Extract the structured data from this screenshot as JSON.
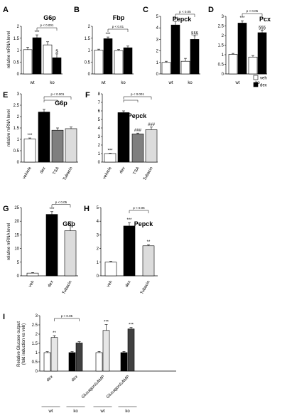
{
  "legend": {
    "items": [
      {
        "label": "veh",
        "color": "#ffffff"
      },
      {
        "label": "dex",
        "color": "#000000"
      }
    ]
  },
  "chart_data": [
    {
      "id": "A",
      "type": "bar",
      "title": "G6p",
      "ylabel": "relative mRNA level",
      "ylim": [
        0,
        2
      ],
      "yticks": [
        0,
        0.5,
        1,
        1.5,
        2
      ],
      "yticklabels": [
        "0",
        "0.5",
        "1",
        "1.5",
        "2"
      ],
      "groups": [
        "wt",
        "ko"
      ],
      "bars": [
        {
          "value": 1.02,
          "err": 0.1,
          "color": "#ffffff"
        },
        {
          "value": 1.52,
          "err": 0.12,
          "color": "#000000",
          "sig": "***"
        },
        {
          "value": 1.22,
          "err": 0.13,
          "color": "#ffffff"
        },
        {
          "value": 0.68,
          "err": 0.16,
          "color": "#000000",
          "sig": "$"
        }
      ],
      "bracket": {
        "from": 1,
        "to": 3,
        "label": "p < 0.001"
      }
    },
    {
      "id": "B",
      "type": "bar",
      "title": "Fbp",
      "ylabel": "",
      "ylim": [
        0,
        2
      ],
      "yticks": [
        0,
        0.5,
        1,
        1.5,
        2
      ],
      "yticklabels": [
        "0",
        "0.5",
        "1",
        "1.5",
        "2"
      ],
      "groups": [
        "wt",
        "ko"
      ],
      "bars": [
        {
          "value": 1.0,
          "err": 0.04,
          "color": "#ffffff"
        },
        {
          "value": 1.48,
          "err": 0.07,
          "color": "#000000",
          "sig": "***"
        },
        {
          "value": 0.98,
          "err": 0.05,
          "color": "#ffffff"
        },
        {
          "value": 1.1,
          "err": 0.07,
          "color": "#000000"
        }
      ],
      "bracket": {
        "from": 1,
        "to": 3,
        "label": "p < 0.01"
      }
    },
    {
      "id": "C",
      "type": "bar",
      "title": "Pepck",
      "ylabel": "",
      "ylim": [
        0,
        5
      ],
      "yticks": [
        0,
        1,
        2,
        3,
        4,
        5
      ],
      "yticklabels": [
        "0",
        "1",
        "2",
        "3",
        "4",
        "5"
      ],
      "groups": [
        "wt",
        "ko"
      ],
      "bars": [
        {
          "value": 1.0,
          "err": 0.1,
          "color": "#ffffff"
        },
        {
          "value": 4.25,
          "err": 0.32,
          "color": "#000000",
          "sig": "***"
        },
        {
          "value": 1.1,
          "err": 0.25,
          "color": "#ffffff"
        },
        {
          "value": 3.0,
          "err": 0.3,
          "color": "#000000",
          "sig": "§§§"
        }
      ],
      "bracket": {
        "from": 1,
        "to": 3,
        "label": "p < 0.05"
      }
    },
    {
      "id": "D",
      "type": "bar",
      "title": "Pcx",
      "ylabel": "",
      "ylim": [
        0,
        3
      ],
      "yticks": [
        0,
        0.5,
        1,
        1.5,
        2,
        2.5,
        3
      ],
      "yticklabels": [
        "0",
        "0.5",
        "1",
        "1.5",
        "2",
        "2.5",
        "3"
      ],
      "groups": [
        "wt",
        "ko"
      ],
      "bars": [
        {
          "value": 1.02,
          "err": 0.05,
          "color": "#ffffff"
        },
        {
          "value": 2.65,
          "err": 0.12,
          "color": "#000000",
          "sig": "***"
        },
        {
          "value": 0.88,
          "err": 0.08,
          "color": "#ffffff"
        },
        {
          "value": 2.15,
          "err": 0.13,
          "color": "#000000",
          "sig": "§§§"
        }
      ],
      "bracket": {
        "from": 1,
        "to": 3,
        "label": "p < 0.05"
      }
    },
    {
      "id": "E",
      "type": "bar",
      "title": "G6p",
      "ylabel": "relative mRNA level",
      "ylim": [
        0,
        3
      ],
      "yticks": [
        0,
        0.5,
        1,
        1.5,
        2,
        2.5,
        3
      ],
      "yticklabels": [
        "0",
        "0.5",
        "1",
        "1.5",
        "2",
        "2.5",
        "3"
      ],
      "categories": [
        "vehicle",
        "dex",
        "TSA",
        "Tubacin"
      ],
      "bars": [
        {
          "value": 1.02,
          "err": 0.04,
          "color": "#ffffff",
          "sig": "***"
        },
        {
          "value": 2.2,
          "err": 0.12,
          "color": "#000000"
        },
        {
          "value": 1.4,
          "err": 0.1,
          "color": "#7f7f7f"
        },
        {
          "value": 1.47,
          "err": 0.07,
          "color": "#dcdcdc"
        }
      ],
      "bracket": {
        "from": 1,
        "to": 3,
        "inner": 2,
        "label": "p < 0.001"
      }
    },
    {
      "id": "F",
      "type": "bar",
      "title": "Pepck",
      "ylabel": "",
      "ylim": [
        0,
        8
      ],
      "yticks": [
        0,
        1,
        2,
        3,
        4,
        5,
        6,
        7,
        8
      ],
      "yticklabels": [
        "0",
        "1",
        "2",
        "3",
        "4",
        "5",
        "6",
        "7",
        "8"
      ],
      "categories": [
        "vehicle",
        "dex",
        "TSA",
        "Tubacin"
      ],
      "bars": [
        {
          "value": 1.0,
          "err": 0.05,
          "color": "#ffffff",
          "sig": "***"
        },
        {
          "value": 5.8,
          "err": 0.2,
          "color": "#000000"
        },
        {
          "value": 3.3,
          "err": 0.1,
          "color": "#7f7f7f",
          "sig": "###"
        },
        {
          "value": 3.8,
          "err": 0.3,
          "color": "#dcdcdc",
          "sig": "###"
        }
      ],
      "bracket": {
        "from": 1,
        "to": 3,
        "inner": 2,
        "label": "p < 0.001"
      }
    },
    {
      "id": "G",
      "type": "bar",
      "title": "G6p",
      "ylabel": "relative mRNA level",
      "ylim": [
        0,
        25
      ],
      "yticks": [
        0,
        5,
        10,
        15,
        20,
        25
      ],
      "yticklabels": [
        "0",
        "5",
        "10",
        "15",
        "20",
        "25"
      ],
      "categories": [
        "veh",
        "dex",
        "Tubacin"
      ],
      "bars": [
        {
          "value": 1.0,
          "err": 0.2,
          "color": "#ffffff"
        },
        {
          "value": 22.5,
          "err": 1.0,
          "color": "#000000",
          "sig": "***"
        },
        {
          "value": 16.5,
          "err": 1.8,
          "color": "#dcdcdc",
          "sig": "***"
        }
      ],
      "bracket": {
        "from": 1,
        "to": 2,
        "label": "p < 0.05"
      }
    },
    {
      "id": "H",
      "type": "bar",
      "title": "Pepck",
      "ylabel": "",
      "ylim": [
        0,
        5
      ],
      "yticks": [
        0,
        1,
        2,
        3,
        4,
        5
      ],
      "yticklabels": [
        "0",
        "1",
        "2",
        "3",
        "4",
        "5"
      ],
      "categories": [
        "veh",
        "dex",
        "Tubacin"
      ],
      "bars": [
        {
          "value": 1.0,
          "err": 0.06,
          "color": "#ffffff"
        },
        {
          "value": 3.65,
          "err": 0.25,
          "color": "#000000",
          "sig": "***"
        },
        {
          "value": 2.2,
          "err": 0.08,
          "color": "#dcdcdc",
          "sig": "**"
        }
      ],
      "bracket": {
        "from": 1,
        "to": 2,
        "label": "p < 0.05"
      }
    },
    {
      "id": "I",
      "type": "bar",
      "title": "",
      "ylabel": "Relative Glucose output (fold induction vs veh)",
      "ylim": [
        0,
        3
      ],
      "yticks": [
        0,
        0.5,
        1,
        1.5,
        2,
        2.5,
        3
      ],
      "yticklabels": [
        "0",
        "0.5",
        "1",
        "1.5",
        "2",
        "2.5",
        "3"
      ],
      "categories": [
        "dex",
        "dex",
        "Glucagon/cAMP",
        "Glucagon/cAMP"
      ],
      "subgroups": [
        "wt",
        "ko",
        "wt",
        "ko"
      ],
      "bars": [
        {
          "value": 1.0,
          "err": 0.05,
          "color": "#ffffff"
        },
        {
          "value": 1.82,
          "err": 0.1,
          "color": "#e6e6e6",
          "sig": "**"
        },
        {
          "value": 1.0,
          "err": 0.05,
          "color": "#000000"
        },
        {
          "value": 1.52,
          "err": 0.07,
          "color": "#404040"
        },
        {
          "value": 1.0,
          "err": 0.06,
          "color": "#ffffff"
        },
        {
          "value": 2.2,
          "err": 0.32,
          "color": "#e6e6e6",
          "sig": "***"
        },
        {
          "value": 1.0,
          "err": 0.06,
          "color": "#000000"
        },
        {
          "value": 2.28,
          "err": 0.08,
          "color": "#404040",
          "sig": "***"
        }
      ],
      "bracket": {
        "from": 1,
        "to": 3,
        "label": "p < 0.05"
      }
    }
  ]
}
